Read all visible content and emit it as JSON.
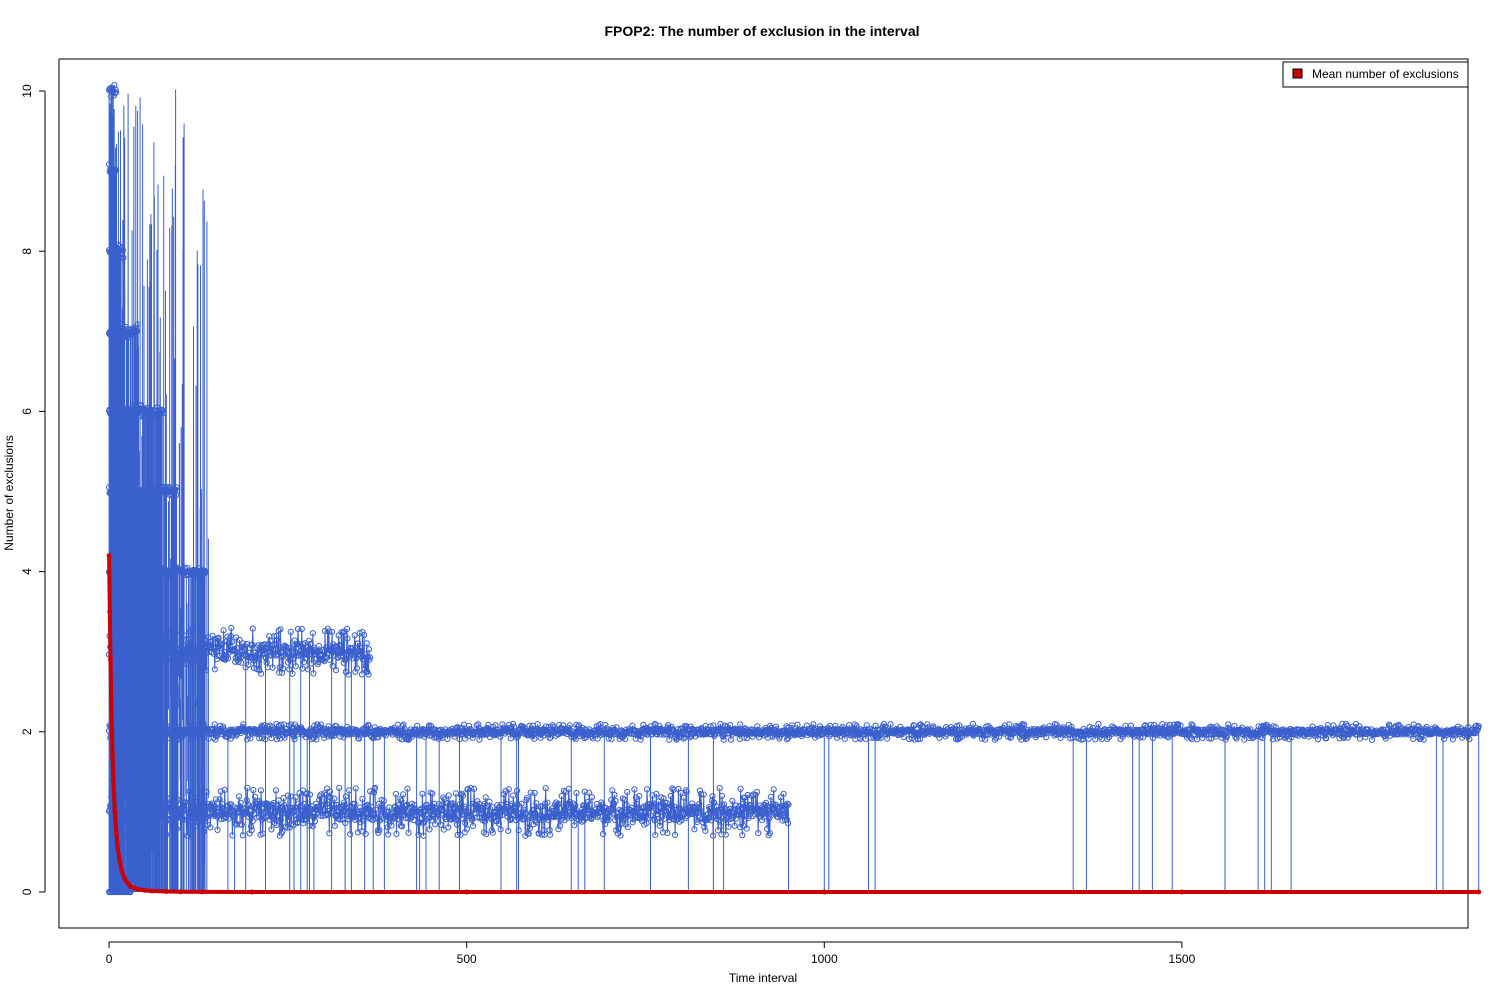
{
  "chart_data": {
    "type": "scatter",
    "title": "FPOP2: The number of exclusion in the interval",
    "xlabel": "Time interval",
    "ylabel": "Number of exclusions",
    "xlim": [
      -70,
      1900
    ],
    "ylim": [
      -0.45,
      10.4
    ],
    "x_ticks": [
      0,
      500,
      1000,
      1500
    ],
    "y_ticks": [
      0,
      2,
      4,
      6,
      8,
      10
    ],
    "grid": false,
    "legend_position": "top-right",
    "colors": {
      "observed": "#3a60cd",
      "mean": "#cc0000"
    },
    "series": [
      {
        "name": "",
        "color": "#3a60cd",
        "style": "line+open-circles",
        "levels": [
          {
            "y": 10,
            "x_range": [
              0,
              10
            ],
            "jitter": 0.1
          },
          {
            "y": 9,
            "x_range": [
              0,
              10
            ],
            "jitter": 0.1
          },
          {
            "y": 8,
            "x_range": [
              0,
              20
            ],
            "jitter": 0.1
          },
          {
            "y": 7,
            "x_range": [
              0,
              40
            ],
            "jitter": 0.1
          },
          {
            "y": 6,
            "x_range": [
              0,
              75
            ],
            "jitter": 0.08
          },
          {
            "y": 5,
            "x_range": [
              0,
              95
            ],
            "jitter": 0.06
          },
          {
            "y": 4,
            "x_range": [
              0,
              135
            ],
            "jitter": 0.05
          },
          {
            "y": 3,
            "x_range": [
              0,
              365
            ],
            "jitter": 0.3
          },
          {
            "y": 2,
            "x_range": [
              0,
              1915
            ],
            "jitter": 0.1
          },
          {
            "y": 1,
            "x_range": [
              0,
              950
            ],
            "jitter": 0.3
          },
          {
            "y": 0,
            "x_range": [
              0,
              30
            ],
            "jitter": 0
          }
        ]
      },
      {
        "name": "Mean number of exclusions",
        "color": "#cc0000",
        "style": "thick-line",
        "x": [
          0,
          1,
          2,
          3,
          4,
          5,
          6,
          8,
          10,
          12,
          15,
          18,
          22,
          26,
          30,
          35,
          40,
          50,
          60,
          80,
          100,
          130,
          200,
          500,
          1000,
          1500,
          1915
        ],
        "values": [
          4.2,
          3.5,
          2.9,
          2.4,
          2.0,
          1.7,
          1.4,
          1.0,
          0.75,
          0.55,
          0.38,
          0.26,
          0.16,
          0.11,
          0.07,
          0.05,
          0.035,
          0.02,
          0.012,
          0.006,
          0.003,
          0.001,
          0,
          0,
          0,
          0,
          0
        ]
      }
    ]
  }
}
